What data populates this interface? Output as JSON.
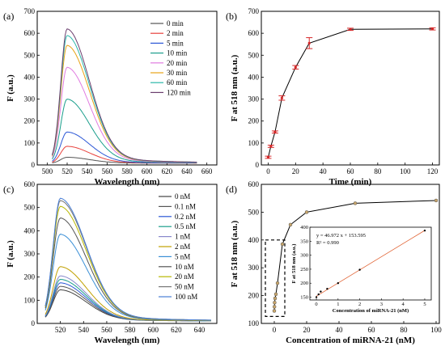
{
  "chart_data": [
    {
      "panel": "(a)",
      "type": "line",
      "xlabel": "Wavelength (nm)",
      "ylabel": "F (a.u.)",
      "xlim": [
        490,
        670
      ],
      "ylim": [
        0,
        700
      ],
      "xticks": [
        500,
        520,
        540,
        560,
        580,
        600,
        620,
        640,
        660
      ],
      "yticks": [
        0,
        100,
        200,
        300,
        400,
        500,
        600,
        700
      ],
      "legend_position": "top-right",
      "series": [
        {
          "name": "0 min",
          "color": "#555555",
          "peak": 35
        },
        {
          "name": "2 min",
          "color": "#e8413c",
          "peak": 85
        },
        {
          "name": "5 min",
          "color": "#2a56d6",
          "peak": 150
        },
        {
          "name": "10 min",
          "color": "#1a9e8c",
          "peak": 300
        },
        {
          "name": "20 min",
          "color": "#e07be0",
          "peak": 445
        },
        {
          "name": "30 min",
          "color": "#e8a317",
          "peak": 545
        },
        {
          "name": "60 min",
          "color": "#2ab7a9",
          "peak": 590
        },
        {
          "name": "120 min",
          "color": "#6b3e6e",
          "peak": 620
        }
      ]
    },
    {
      "panel": "(b)",
      "type": "line",
      "xlabel": "Time (min)",
      "ylabel": "F at 518 nm (a.u.)",
      "xlim": [
        -5,
        125
      ],
      "ylim": [
        0,
        700
      ],
      "xticks": [
        0,
        20,
        40,
        60,
        80,
        100,
        120
      ],
      "yticks": [
        0,
        100,
        200,
        300,
        400,
        500,
        600,
        700
      ],
      "x": [
        0,
        2,
        5,
        10,
        20,
        30,
        60,
        120
      ],
      "y": [
        35,
        85,
        150,
        305,
        445,
        555,
        618,
        620
      ],
      "err": [
        5,
        5,
        5,
        10,
        8,
        25,
        5,
        5
      ]
    },
    {
      "panel": "(c)",
      "type": "line",
      "xlabel": "Wavelength (nm)",
      "ylabel": "F (a.u.)",
      "xlim": [
        500,
        655
      ],
      "ylim": [
        0,
        600
      ],
      "xticks": [
        520,
        540,
        560,
        580,
        600,
        620,
        640
      ],
      "yticks": [
        0,
        100,
        200,
        300,
        400,
        500,
        600
      ],
      "legend_position": "top-right",
      "series": [
        {
          "name": "0 nM",
          "color": "#444444",
          "peak": 145
        },
        {
          "name": "0.1 nM",
          "color": "#555555",
          "peak": 160
        },
        {
          "name": "0.2 nM",
          "color": "#2a56d6",
          "peak": 175
        },
        {
          "name": "0.5 nM",
          "color": "#1a9e8c",
          "peak": 190
        },
        {
          "name": "1 nM",
          "color": "#8888cc",
          "peak": 205
        },
        {
          "name": "2 nM",
          "color": "#c0a000",
          "peak": 245
        },
        {
          "name": "5 nM",
          "color": "#3a8fd6",
          "peak": 385
        },
        {
          "name": "10 nM",
          "color": "#555555",
          "peak": 455
        },
        {
          "name": "20 nM",
          "color": "#b8b800",
          "peak": 505
        },
        {
          "name": "50 nM",
          "color": "#777777",
          "peak": 530
        },
        {
          "name": "100 nM",
          "color": "#4a7fd6",
          "peak": 540
        }
      ]
    },
    {
      "panel": "(d)",
      "type": "scatter",
      "xlabel": "Concentration of miRNA-21 (nM)",
      "ylabel": "F at 518 nm (a.u.)",
      "xlim": [
        -8,
        102
      ],
      "ylim": [
        100,
        600
      ],
      "xticks": [
        0,
        20,
        40,
        60,
        80,
        100
      ],
      "yticks": [
        100,
        200,
        300,
        400,
        500,
        600
      ],
      "x": [
        0,
        0.1,
        0.2,
        0.5,
        1,
        2,
        5,
        10,
        20,
        50,
        100
      ],
      "y": [
        145,
        160,
        175,
        190,
        205,
        245,
        385,
        455,
        500,
        532,
        542
      ],
      "inset": {
        "xlabel": "Concentration of miRNA-21 (nM)",
        "ylabel": "F at 518 nm (a.u.)",
        "xlim": [
          -0.3,
          5.3
        ],
        "ylim": [
          140,
          400
        ],
        "xticks": [
          0,
          1,
          2,
          3,
          4,
          5
        ],
        "yticks": [
          150,
          200,
          250,
          300,
          350,
          400
        ],
        "x": [
          0,
          0.1,
          0.2,
          0.5,
          1,
          2,
          5
        ],
        "y": [
          150,
          160,
          170,
          180,
          200,
          248,
          388
        ],
        "equation": "y = 46.972 x + 153.595",
        "r2": "R² = 0.990",
        "slope": 46.972,
        "intercept": 153.595
      }
    }
  ]
}
